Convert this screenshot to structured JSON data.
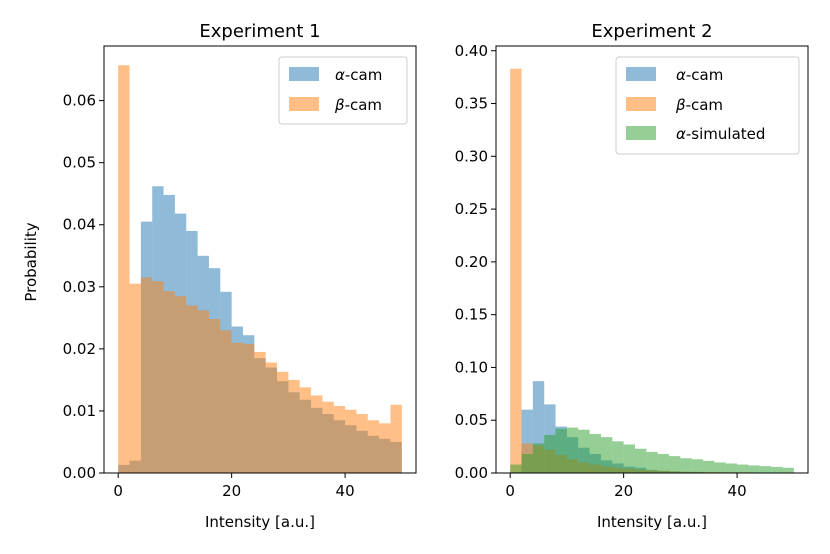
{
  "chart_data": [
    {
      "type": "histogram",
      "title": "Experiment 1",
      "xlabel": "Intensity [a.u.]",
      "ylabel": "Probability",
      "xlim": [
        -2.5,
        52.5
      ],
      "ylim": [
        0,
        0.0688
      ],
      "xticks": [
        0,
        20,
        40
      ],
      "xtick_labels": [
        "0",
        "20",
        "40"
      ],
      "yticks": [
        0,
        0.01,
        0.02,
        0.03,
        0.04,
        0.05,
        0.06
      ],
      "ytick_labels": [
        "0.00",
        "0.01",
        "0.02",
        "0.03",
        "0.04",
        "0.05",
        "0.06"
      ],
      "legend_position": "top-right",
      "bin_edges": [
        0,
        2,
        4,
        6,
        8,
        10,
        12,
        14,
        16,
        18,
        20,
        22,
        24,
        26,
        28,
        30,
        32,
        34,
        36,
        38,
        40,
        42,
        44,
        46,
        48,
        50
      ],
      "series": [
        {
          "name": "α-cam",
          "legend_prefix": "α",
          "legend_suffix": "-cam",
          "color": "#1f77b4",
          "values": [
            0.0013,
            0.002,
            0.0405,
            0.0462,
            0.0448,
            0.0418,
            0.039,
            0.035,
            0.033,
            0.0292,
            0.0236,
            0.0222,
            0.0185,
            0.017,
            0.0148,
            0.013,
            0.0118,
            0.0105,
            0.0095,
            0.0085,
            0.0077,
            0.0068,
            0.006,
            0.0055,
            0.005
          ]
        },
        {
          "name": "β-cam",
          "legend_prefix": "β",
          "legend_suffix": "-cam",
          "color": "#ff7f0e",
          "values": [
            0.0657,
            0.0305,
            0.0315,
            0.0309,
            0.0293,
            0.0285,
            0.027,
            0.0262,
            0.0248,
            0.023,
            0.021,
            0.0208,
            0.0195,
            0.0178,
            0.0163,
            0.015,
            0.0138,
            0.0125,
            0.0115,
            0.0108,
            0.0102,
            0.0095,
            0.0085,
            0.008,
            0.011
          ]
        }
      ]
    },
    {
      "type": "histogram",
      "title": "Experiment 2",
      "xlabel": "Intensity [a.u.]",
      "ylabel": "",
      "xlim": [
        -2.5,
        52.5
      ],
      "ylim": [
        0,
        0.4045
      ],
      "xticks": [
        0,
        20,
        40
      ],
      "xtick_labels": [
        "0",
        "20",
        "40"
      ],
      "yticks": [
        0,
        0.05,
        0.1,
        0.15,
        0.2,
        0.25,
        0.3,
        0.35,
        0.4
      ],
      "ytick_labels": [
        "0.00",
        "0.05",
        "0.10",
        "0.15",
        "0.20",
        "0.25",
        "0.30",
        "0.35",
        "0.40"
      ],
      "legend_position": "top-right",
      "bin_edges": [
        0,
        2,
        4,
        6,
        8,
        10,
        12,
        14,
        16,
        18,
        20,
        22,
        24,
        26,
        28,
        30,
        32,
        34,
        36,
        38,
        40,
        42,
        44,
        46,
        48,
        50
      ],
      "series": [
        {
          "name": "α-cam",
          "legend_prefix": "α",
          "legend_suffix": "-cam",
          "color": "#1f77b4",
          "values": [
            0.001,
            0.06,
            0.087,
            0.065,
            0.044,
            0.034,
            0.024,
            0.018,
            0.012,
            0.009,
            0.006,
            0.005,
            0.003,
            0.002,
            0.0015,
            0.001,
            0.001,
            0.0005,
            0.0005,
            0.0005,
            0.0003,
            0.0003,
            0.0002,
            0.0002,
            0.0001
          ]
        },
        {
          "name": "β-cam",
          "legend_prefix": "β",
          "legend_suffix": "-cam",
          "color": "#ff7f0e",
          "values": [
            0.383,
            0.028,
            0.026,
            0.022,
            0.017,
            0.013,
            0.01,
            0.008,
            0.006,
            0.005,
            0.004,
            0.003,
            0.0025,
            0.002,
            0.0016,
            0.0013,
            0.0011,
            0.0009,
            0.0008,
            0.0007,
            0.0006,
            0.0005,
            0.0004,
            0.0003,
            0.0002
          ]
        },
        {
          "name": "α-simulated",
          "legend_prefix": "α",
          "legend_suffix": "-simulated",
          "color": "#2ca02c",
          "values": [
            0.008,
            0.018,
            0.028,
            0.036,
            0.042,
            0.043,
            0.041,
            0.037,
            0.034,
            0.03,
            0.027,
            0.023,
            0.02,
            0.018,
            0.016,
            0.014,
            0.013,
            0.0115,
            0.01,
            0.009,
            0.008,
            0.0072,
            0.0065,
            0.0058,
            0.005
          ]
        }
      ]
    }
  ]
}
